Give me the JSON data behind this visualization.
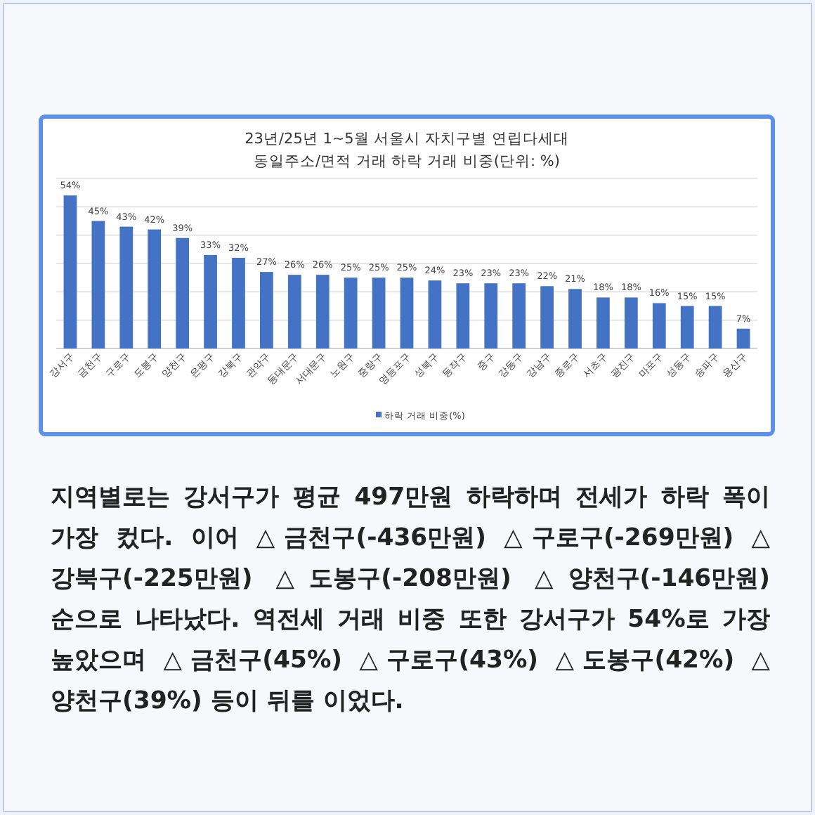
{
  "chart_data": {
    "type": "bar",
    "title": "23년/25년 1~5월 서울시 자치구별 연립다세대",
    "subtitle": "동일주소/면적 거래 하락 거래 비중(단위: %)",
    "categories": [
      "강서구",
      "금천구",
      "구로구",
      "도봉구",
      "양천구",
      "은평구",
      "강북구",
      "관악구",
      "동대문구",
      "서대문구",
      "노원구",
      "중랑구",
      "영등포구",
      "성북구",
      "동작구",
      "중구",
      "강동구",
      "강남구",
      "종로구",
      "서초구",
      "광진구",
      "마포구",
      "성동구",
      "송파구",
      "용산구"
    ],
    "series": [
      {
        "name": "하락 거래 비중(%)",
        "color": "#4472c4",
        "values": [
          54,
          45,
          43,
          42,
          39,
          33,
          32,
          27,
          26,
          26,
          25,
          25,
          25,
          24,
          23,
          23,
          23,
          22,
          21,
          18,
          18,
          16,
          15,
          15,
          7
        ],
        "value_labels": [
          "54%",
          "45%",
          "43%",
          "42%",
          "39%",
          "33%",
          "32%",
          "27%",
          "26%",
          "26%",
          "25%",
          "25%",
          "25%",
          "24%",
          "23%",
          "23%",
          "23%",
          "22%",
          "21%",
          "18%",
          "18%",
          "16%",
          "15%",
          "15%",
          "7%"
        ]
      }
    ],
    "grid": "y",
    "tick_labels": "x",
    "legend": "bottom",
    "annotations": [
      "지역별로는 강서구가 평균 497만원 하락하며 전세가 하락 폭이 가장 컸다. 이어 △금천구(-436만원) △구로구(-269만원) △강북구(-225만원) △도봉구(-208만원) △양천구(-146만원) 순으로 나타났다. 역전세 거래 비중 또한 강서구가 54%로 가장 높았으며 △금천구(45%) △구로구(43%) △도봉구(42%) △양천구(39%) 등이 뒤를 이었다."
    ]
  }
}
